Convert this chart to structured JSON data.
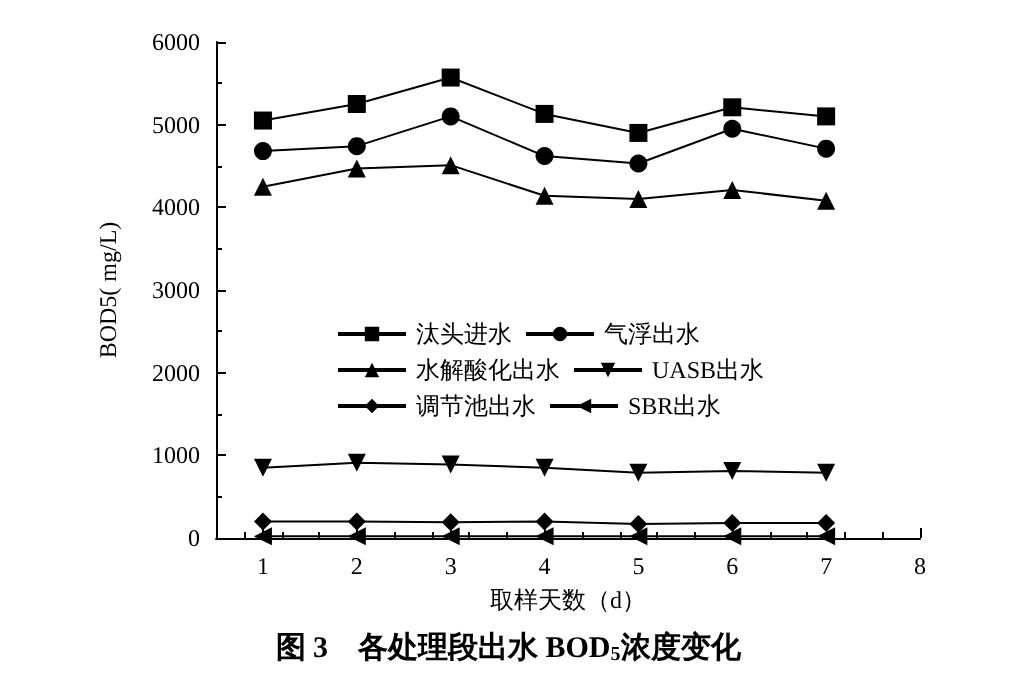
{
  "chart_data": {
    "type": "line",
    "title": "图 3　各处理段出水 BOD$_{5}$浓度变化",
    "xlabel": "取样天数（d）",
    "ylabel": "BOD5( mg/L)",
    "x": [
      1,
      2,
      3,
      4,
      5,
      6,
      7
    ],
    "xlim": [
      0.5,
      8
    ],
    "xticks": [
      1,
      2,
      3,
      4,
      5,
      6,
      7,
      8
    ],
    "ylim": [
      0,
      6000
    ],
    "yticks": [
      0,
      1000,
      2000,
      3000,
      4000,
      5000,
      6000
    ],
    "grid": false,
    "legend": "center",
    "line_style": "solid",
    "series": [
      {
        "name": "汰头进水",
        "color": "#000000",
        "marker": "square",
        "values": [
          5050,
          5250,
          5570,
          5130,
          4900,
          5210,
          5100
        ]
      },
      {
        "name": "气浮出水",
        "color": "#000000",
        "marker": "circle",
        "values": [
          4680,
          4740,
          5100,
          4620,
          4530,
          4950,
          4710
        ]
      },
      {
        "name": "水解酸化出水",
        "color": "#000000",
        "marker": "triangle",
        "values": [
          4250,
          4470,
          4510,
          4140,
          4100,
          4210,
          4080
        ]
      },
      {
        "name": "UASB出水",
        "color": "#000000",
        "marker": "triangle-down",
        "values": [
          850,
          910,
          890,
          850,
          790,
          810,
          790
        ]
      },
      {
        "name": "调节池出水",
        "color": "#000000",
        "marker": "diamond",
        "values": [
          200,
          200,
          190,
          200,
          170,
          180,
          180
        ]
      },
      {
        "name": "SBR出水",
        "color": "#000000",
        "marker": "triangle-left",
        "values": [
          20,
          20,
          20,
          20,
          20,
          20,
          20
        ]
      }
    ]
  }
}
